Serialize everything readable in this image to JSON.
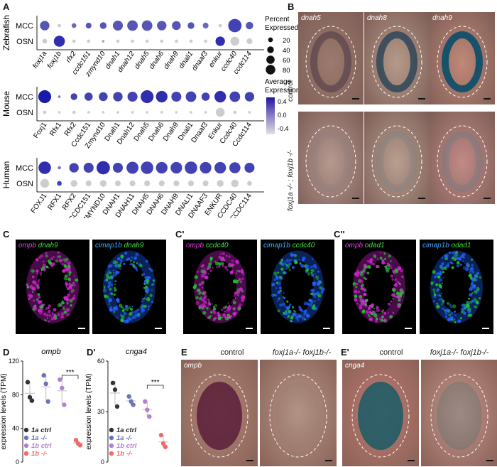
{
  "panels": {
    "A": "A",
    "B": "B",
    "C": "C",
    "C1": "C'",
    "C2": "C''",
    "D": "D",
    "D1": "D'",
    "E": "E",
    "E1": "E'"
  },
  "chart_data": [
    {
      "type": "dot",
      "species": "Zebrafish",
      "rows": [
        "MCC",
        "OSN"
      ],
      "genes": [
        "foxj1a",
        "foxj1b",
        "rfx2",
        "ccdc151",
        "zmynd10",
        "dnah1",
        "dnah12",
        "dnah5",
        "dnah6",
        "dnah9",
        "dnali1",
        "dnaaf3",
        "enkur",
        "ccdc40",
        "ccdc114"
      ],
      "italic": true,
      "pct": [
        [
          40,
          5,
          10,
          15,
          20,
          45,
          50,
          50,
          40,
          35,
          20,
          15,
          5,
          80,
          25
        ],
        [
          10,
          55,
          5,
          5,
          3,
          5,
          5,
          5,
          5,
          5,
          5,
          5,
          40,
          35,
          15
        ]
      ],
      "expr": [
        [
          0.2,
          -0.4,
          0.1,
          0.2,
          0.2,
          0.2,
          0.2,
          0.2,
          0.2,
          0.2,
          0.2,
          0.1,
          -0.4,
          0.3,
          0.2
        ],
        [
          -0.4,
          0.4,
          -0.4,
          -0.4,
          -0.2,
          -0.4,
          -0.4,
          -0.4,
          -0.4,
          -0.4,
          -0.4,
          -0.4,
          0.4,
          -0.4,
          -0.4
        ]
      ]
    },
    {
      "type": "dot",
      "species": "Mouse",
      "rows": [
        "MCC",
        "OSN"
      ],
      "genes": [
        "Foxj1",
        "Rfx1",
        "Rfx2",
        "Ccdc151",
        "Zmynd10",
        "Dnah1",
        "Dnah12",
        "Dnah5",
        "Dnah6",
        "Dnah9",
        "Dnali1",
        "Dnaaf3",
        "Enkur",
        "Ccdc40",
        "Ccdc114"
      ],
      "italic": false,
      "pct": [
        [
          75,
          3,
          20,
          30,
          35,
          40,
          45,
          75,
          60,
          45,
          50,
          30,
          60,
          50,
          40
        ],
        [
          5,
          3,
          5,
          3,
          3,
          3,
          3,
          3,
          3,
          3,
          3,
          3,
          35,
          5,
          3
        ]
      ],
      "expr": [
        [
          0.5,
          0.0,
          0.3,
          0.3,
          0.3,
          0.3,
          0.3,
          0.4,
          0.4,
          0.3,
          0.3,
          0.3,
          0.4,
          0.3,
          0.3
        ],
        [
          -0.4,
          -0.4,
          -0.4,
          -0.4,
          -0.4,
          -0.4,
          -0.4,
          -0.4,
          -0.4,
          -0.4,
          -0.4,
          -0.4,
          -0.4,
          -0.4,
          -0.4
        ]
      ]
    },
    {
      "type": "dot",
      "species": "Human",
      "rows": [
        "MCC",
        "OSN"
      ],
      "genes": [
        "FOXJ1",
        "RFX1",
        "RFX2",
        "CCDC151",
        "ZMYND10",
        "DNAH1",
        "DNAH11",
        "DNAH5",
        "DNAH6",
        "DNAH9",
        "DNALI1",
        "DNAAF3",
        "ENKUR",
        "CCDC40",
        "CCDC114"
      ],
      "italic": false,
      "pct": [
        [
          70,
          5,
          40,
          45,
          80,
          45,
          65,
          70,
          60,
          60,
          70,
          60,
          60,
          55,
          45
        ],
        [
          35,
          10,
          20,
          15,
          20,
          15,
          15,
          15,
          15,
          15,
          15,
          15,
          20,
          25,
          10
        ]
      ],
      "expr": [
        [
          0.4,
          0.0,
          0.3,
          0.3,
          0.4,
          0.3,
          0.3,
          0.3,
          0.3,
          0.3,
          0.3,
          0.3,
          0.3,
          0.3,
          0.3
        ],
        [
          -0.4,
          0.3,
          -0.4,
          -0.4,
          -0.4,
          -0.4,
          -0.4,
          -0.4,
          -0.4,
          -0.4,
          -0.4,
          -0.4,
          -0.4,
          -0.4,
          -0.4
        ]
      ]
    },
    {
      "type": "scatter",
      "gene": "ompb",
      "ylabel": "expression levels (TPM)",
      "yticks": [
        0,
        40,
        80,
        120
      ],
      "ylim": [
        0,
        120
      ],
      "groups": [
        {
          "name": "1a ctrl",
          "color": "#333333",
          "values": [
            95,
            77,
            73
          ]
        },
        {
          "name": "1a -/-",
          "color": "#6c74b9",
          "values": [
            103,
            93,
            72
          ]
        },
        {
          "name": "1b ctrl",
          "color": "#b57fd1",
          "values": [
            98,
            88,
            68
          ]
        },
        {
          "name": "1b -/-",
          "color": "#f06a6a",
          "values": [
            26,
            22,
            20
          ]
        }
      ],
      "significance": "***"
    },
    {
      "type": "scatter",
      "gene": "cnga4",
      "ylabel": "expression levels (TPM)",
      "yticks": [
        0,
        30,
        60
      ],
      "ylim": [
        0,
        60
      ],
      "groups": [
        {
          "name": "1a ctrl",
          "color": "#333333",
          "values": [
            47,
            43,
            33
          ]
        },
        {
          "name": "1a -/-",
          "color": "#6c74b9",
          "values": [
            39,
            36,
            34
          ]
        },
        {
          "name": "1b ctrl",
          "color": "#b57fd1",
          "values": [
            36,
            31,
            27
          ]
        },
        {
          "name": "1b -/-",
          "color": "#f06a6a",
          "values": [
            16,
            11,
            9
          ]
        }
      ],
      "significance": "***"
    }
  ],
  "legend": {
    "percent_title_1": "Percent",
    "percent_title_2": "Expressed",
    "percent_values": [
      20,
      40,
      60,
      80
    ],
    "expr_title_1": "Average",
    "expr_title_2": "Expression",
    "expr_ticks": [
      "0.4",
      "0.0",
      "-0.4"
    ]
  },
  "panelB": {
    "genes": [
      "dnah5",
      "dnah8",
      "dnah9"
    ],
    "rows": [
      "control",
      "foxj1a -/- ; foxj1b -/-"
    ]
  },
  "panelC": {
    "C": [
      [
        "ompb",
        "dnah9"
      ],
      [
        "cimap1b",
        "dnah9"
      ]
    ],
    "C1": [
      [
        "ompb",
        "ccdc40"
      ],
      [
        "cimap1b",
        "ccdc40"
      ]
    ],
    "C2": [
      [
        "ompb",
        "odad1"
      ],
      [
        "cimap1b",
        "odad1"
      ]
    ]
  },
  "panelE": {
    "col_control": "control",
    "col_mutant": "foxj1a-/- foxj1b-/-",
    "gene_E": "ompb",
    "gene_E1": "cnga4"
  }
}
